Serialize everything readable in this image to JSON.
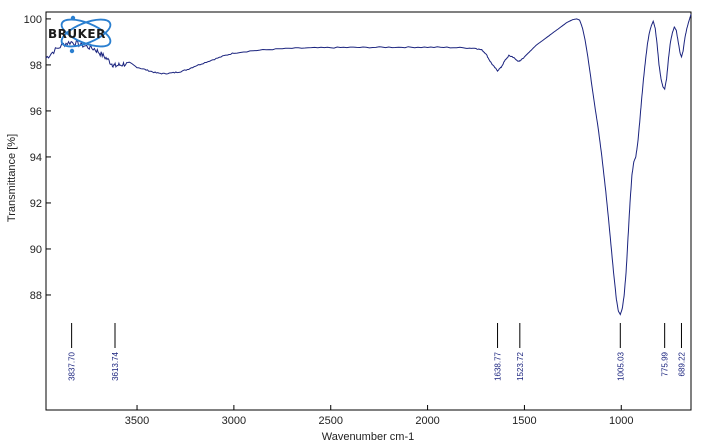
{
  "chart_data": {
    "type": "line",
    "ylabel": "Transmittance [%]",
    "xlabel": "Wavenumber cm-1",
    "xlim": [
      3970,
      640
    ],
    "ylim": [
      83.0,
      100.3
    ],
    "x_reversed": true,
    "grid": false,
    "x_ticks": [
      3500,
      3000,
      2500,
      2000,
      1500,
      1000
    ],
    "y_ticks": [
      88,
      90,
      92,
      94,
      96,
      98,
      100
    ],
    "series": [
      {
        "name": "",
        "color": "#1a237e",
        "points": [
          [
            3970,
            98.3
          ],
          [
            3930,
            98.6
          ],
          [
            3880,
            98.9
          ],
          [
            3840,
            99.0
          ],
          [
            3800,
            98.9
          ],
          [
            3760,
            98.8
          ],
          [
            3720,
            98.7
          ],
          [
            3690,
            98.5
          ],
          [
            3660,
            98.3
          ],
          [
            3630,
            98.05
          ],
          [
            3613,
            97.95
          ],
          [
            3590,
            98.0
          ],
          [
            3560,
            98.05
          ],
          [
            3520,
            97.95
          ],
          [
            3480,
            97.85
          ],
          [
            3440,
            97.75
          ],
          [
            3400,
            97.65
          ],
          [
            3360,
            97.62
          ],
          [
            3320,
            97.65
          ],
          [
            3280,
            97.7
          ],
          [
            3240,
            97.8
          ],
          [
            3200,
            97.95
          ],
          [
            3150,
            98.1
          ],
          [
            3100,
            98.25
          ],
          [
            3050,
            98.4
          ],
          [
            3000,
            98.52
          ],
          [
            2900,
            98.62
          ],
          [
            2800,
            98.68
          ],
          [
            2700,
            98.72
          ],
          [
            2600,
            98.74
          ],
          [
            2500,
            98.75
          ],
          [
            2400,
            98.76
          ],
          [
            2300,
            98.76
          ],
          [
            2200,
            98.77
          ],
          [
            2100,
            98.77
          ],
          [
            2000,
            98.77
          ],
          [
            1900,
            98.76
          ],
          [
            1800,
            98.74
          ],
          [
            1750,
            98.72
          ],
          [
            1720,
            98.65
          ],
          [
            1700,
            98.5
          ],
          [
            1680,
            98.2
          ],
          [
            1660,
            97.95
          ],
          [
            1639,
            97.75
          ],
          [
            1620,
            97.9
          ],
          [
            1600,
            98.2
          ],
          [
            1580,
            98.4
          ],
          [
            1560,
            98.35
          ],
          [
            1540,
            98.2
          ],
          [
            1524,
            98.15
          ],
          [
            1500,
            98.35
          ],
          [
            1470,
            98.6
          ],
          [
            1440,
            98.85
          ],
          [
            1400,
            99.1
          ],
          [
            1360,
            99.35
          ],
          [
            1320,
            99.6
          ],
          [
            1280,
            99.85
          ],
          [
            1250,
            99.97
          ],
          [
            1230,
            100.0
          ],
          [
            1215,
            99.95
          ],
          [
            1200,
            99.6
          ],
          [
            1185,
            99.0
          ],
          [
            1170,
            98.2
          ],
          [
            1155,
            97.3
          ],
          [
            1140,
            96.4
          ],
          [
            1120,
            95.3
          ],
          [
            1100,
            94.0
          ],
          [
            1080,
            92.5
          ],
          [
            1060,
            90.8
          ],
          [
            1040,
            89.0
          ],
          [
            1025,
            87.8
          ],
          [
            1015,
            87.3
          ],
          [
            1005,
            87.15
          ],
          [
            995,
            87.4
          ],
          [
            985,
            88.0
          ],
          [
            975,
            89.0
          ],
          [
            965,
            90.5
          ],
          [
            955,
            92.0
          ],
          [
            945,
            93.2
          ],
          [
            935,
            93.8
          ],
          [
            925,
            94.0
          ],
          [
            915,
            94.6
          ],
          [
            905,
            95.5
          ],
          [
            895,
            96.5
          ],
          [
            885,
            97.4
          ],
          [
            875,
            98.2
          ],
          [
            865,
            98.9
          ],
          [
            855,
            99.4
          ],
          [
            845,
            99.7
          ],
          [
            835,
            99.9
          ],
          [
            825,
            99.6
          ],
          [
            815,
            98.9
          ],
          [
            805,
            98.0
          ],
          [
            795,
            97.4
          ],
          [
            785,
            97.05
          ],
          [
            776,
            96.95
          ],
          [
            766,
            97.4
          ],
          [
            756,
            98.3
          ],
          [
            746,
            99.0
          ],
          [
            736,
            99.4
          ],
          [
            726,
            99.65
          ],
          [
            716,
            99.5
          ],
          [
            706,
            99.0
          ],
          [
            696,
            98.5
          ],
          [
            689,
            98.35
          ],
          [
            681,
            98.6
          ],
          [
            671,
            99.2
          ],
          [
            661,
            99.6
          ],
          [
            651,
            99.9
          ],
          [
            640,
            100.2
          ]
        ]
      }
    ],
    "peaks": [
      {
        "x": 3837.7,
        "label": "3837.70"
      },
      {
        "x": 3613.74,
        "label": "3613.74"
      },
      {
        "x": 1638.77,
        "label": "1638.77"
      },
      {
        "x": 1523.72,
        "label": "1523.72"
      },
      {
        "x": 1005.03,
        "label": "1005.03"
      },
      {
        "x": 775.99,
        "label": "775.99"
      },
      {
        "x": 689.22,
        "label": "689.22"
      }
    ]
  },
  "logo": {
    "text": "BRUKER",
    "color": "#2a7fd0"
  }
}
